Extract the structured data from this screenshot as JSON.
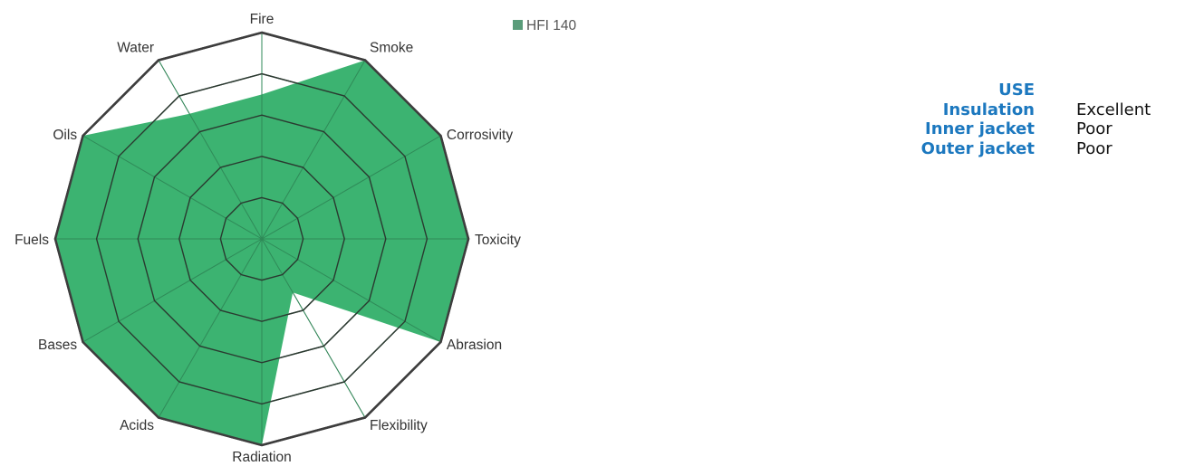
{
  "chart_data": {
    "type": "radar",
    "axes": [
      "Fire",
      "Smoke",
      "Corrosivity",
      "Toxicity",
      "Abrasion",
      "Flexibility",
      "Radiation",
      "Acids",
      "Bases",
      "Fuels",
      "Oils",
      "Water"
    ],
    "rmax": 5,
    "rings": 5,
    "series": [
      {
        "name": "HFI 140",
        "values": [
          3.5,
          5,
          5,
          5,
          5,
          1.5,
          5,
          5,
          5,
          5,
          5,
          3.5
        ]
      }
    ],
    "colors": {
      "fill": "#3cb371",
      "legend_swatch": "#5a9c7a",
      "grid_outer": "#3d3d3d",
      "grid_inner": "#2e2e2e",
      "label": "#333333"
    },
    "legend_position": "top-center"
  },
  "use_table": {
    "title": "USE",
    "rows": [
      {
        "key": "Insulation",
        "value": "Excellent"
      },
      {
        "key": "Inner jacket",
        "value": "Poor"
      },
      {
        "key": "Outer jacket",
        "value": "Poor"
      }
    ],
    "key_color": "#1c78bf"
  }
}
